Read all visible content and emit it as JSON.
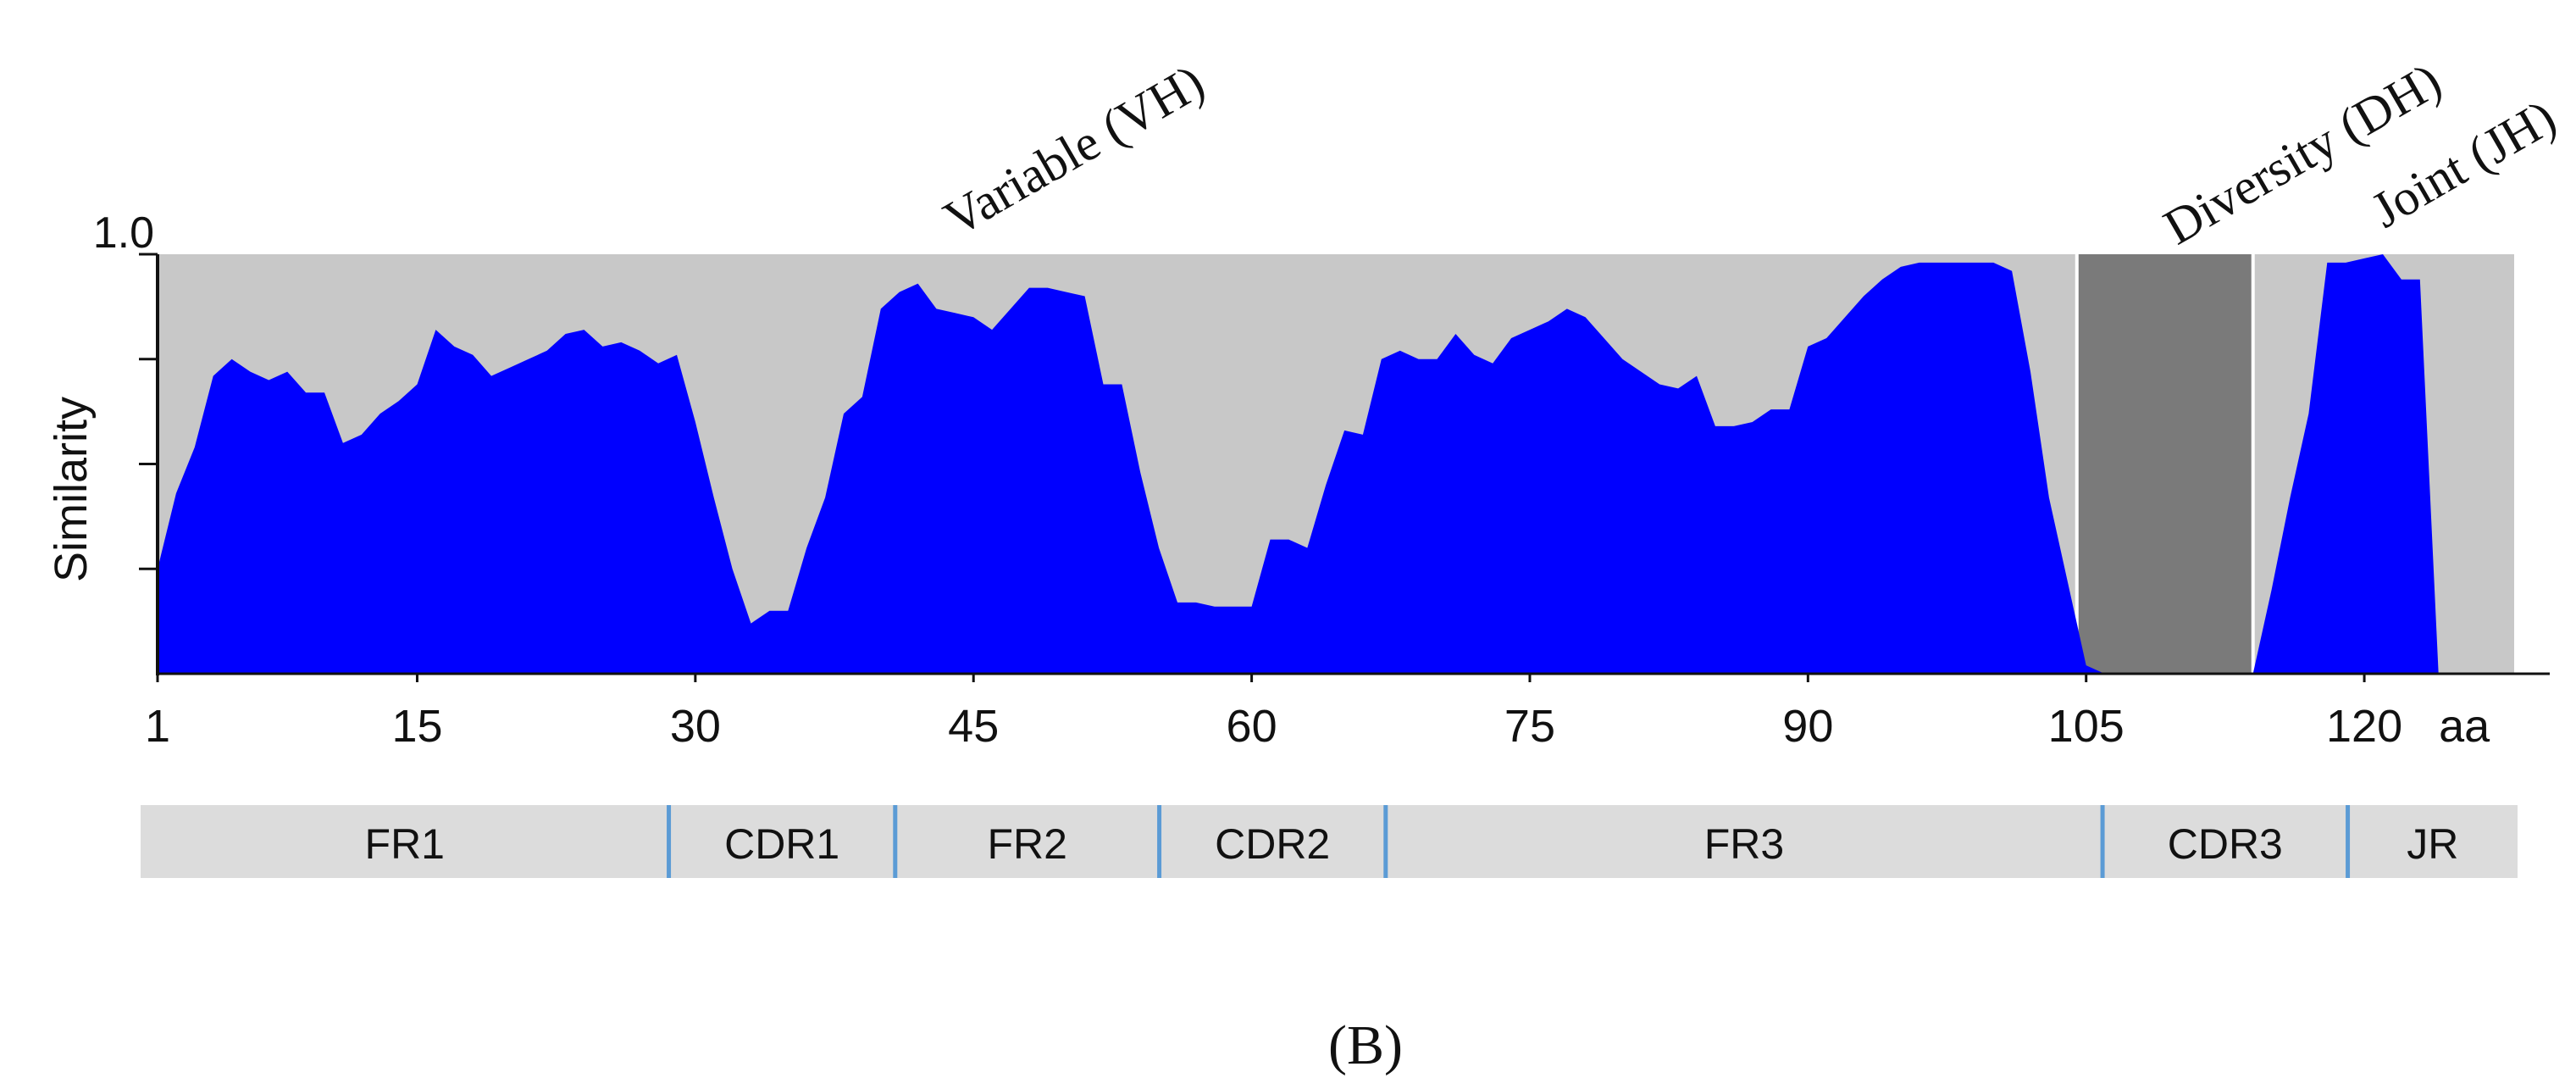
{
  "chart_data": {
    "type": "area",
    "xlabel": "",
    "x_unit": "aa",
    "ylabel": "Similarity",
    "y_max_label": "1.0",
    "xlim": [
      1,
      130
    ],
    "ylim": [
      0,
      1.0
    ],
    "x_ticks": [
      1,
      15,
      30,
      45,
      60,
      75,
      90,
      105,
      120
    ],
    "y_ticks": [
      0.25,
      0.5,
      0.75,
      1.0
    ],
    "grid": false,
    "colors": {
      "area": "#0000ff",
      "background": "#c8c8c8",
      "dh_region": "#7a7a7a",
      "segment_bar": "#dcdcdc",
      "segment_divider": "#5b9bd5"
    },
    "regions": [
      {
        "label": "Variable (VH)",
        "x_start": 1,
        "x_end": 103
      },
      {
        "label": "Diversity (DH)",
        "x_start": 103,
        "x_end": 114
      },
      {
        "label": "Joint (JH)",
        "x_start": 114,
        "x_end": 125
      }
    ],
    "segments": [
      {
        "label": "FR1",
        "start": 1,
        "end": 29
      },
      {
        "label": "CDR1",
        "start": 29,
        "end": 41
      },
      {
        "label": "FR2",
        "start": 41,
        "end": 55
      },
      {
        "label": "CDR2",
        "start": 55,
        "end": 67
      },
      {
        "label": "FR3",
        "start": 67,
        "end": 105
      },
      {
        "label": "CDR3",
        "start": 105,
        "end": 118
      },
      {
        "label": "JR",
        "start": 118,
        "end": 127
      }
    ],
    "series": [
      {
        "values_x": [
          1,
          2,
          3,
          4,
          5,
          6,
          7,
          8,
          9,
          10,
          11,
          12,
          13,
          14,
          15,
          16,
          17,
          18,
          19,
          20,
          21,
          22,
          23,
          24,
          25,
          26,
          27,
          28,
          29,
          30,
          31,
          32,
          33,
          34,
          35,
          36,
          37,
          38,
          39,
          40,
          41,
          42,
          43,
          44,
          45,
          46,
          47,
          48,
          49,
          50,
          51,
          52,
          53,
          54,
          55,
          56,
          57,
          58,
          59,
          60,
          61,
          62,
          63,
          64,
          65,
          66,
          67,
          68,
          69,
          70,
          71,
          72,
          73,
          74,
          75,
          76,
          77,
          78,
          79,
          80,
          81,
          82,
          83,
          84,
          85,
          86,
          87,
          88,
          89,
          90,
          91,
          92,
          93,
          94,
          95,
          96,
          97,
          98,
          99,
          100,
          101,
          102,
          103,
          104,
          105,
          106,
          107,
          108,
          109,
          110,
          111,
          112,
          113,
          114,
          115,
          116,
          117,
          118,
          119,
          120,
          121,
          122,
          123,
          124,
          125,
          126,
          127,
          128,
          129,
          130
        ],
        "values_y": [
          0.25,
          0.43,
          0.54,
          0.71,
          0.75,
          0.72,
          0.7,
          0.72,
          0.67,
          0.67,
          0.55,
          0.57,
          0.62,
          0.65,
          0.69,
          0.82,
          0.78,
          0.76,
          0.71,
          0.73,
          0.75,
          0.77,
          0.81,
          0.82,
          0.78,
          0.79,
          0.77,
          0.74,
          0.76,
          0.6,
          0.42,
          0.25,
          0.12,
          0.15,
          0.15,
          0.3,
          0.42,
          0.62,
          0.66,
          0.87,
          0.91,
          0.93,
          0.87,
          0.86,
          0.85,
          0.82,
          0.87,
          0.92,
          0.92,
          0.91,
          0.9,
          0.69,
          0.69,
          0.48,
          0.3,
          0.17,
          0.17,
          0.16,
          0.16,
          0.16,
          0.32,
          0.32,
          0.3,
          0.45,
          0.58,
          0.57,
          0.75,
          0.77,
          0.75,
          0.75,
          0.81,
          0.76,
          0.74,
          0.8,
          0.82,
          0.84,
          0.87,
          0.85,
          0.8,
          0.75,
          0.72,
          0.69,
          0.68,
          0.71,
          0.59,
          0.59,
          0.6,
          0.63,
          0.63,
          0.78,
          0.8,
          0.85,
          0.9,
          0.94,
          0.97,
          0.98,
          0.98,
          0.98,
          0.98,
          0.98,
          0.96,
          0.72,
          0.42,
          0.22,
          0.02,
          0.0,
          0.0,
          0.0,
          0.0,
          0.0,
          0.0,
          0.0,
          0.0,
          0.0,
          0.2,
          0.42,
          0.62,
          0.98,
          0.98,
          0.99,
          1.0,
          0.94,
          0.94,
          0.0,
          0.0,
          0.0,
          0.0,
          0.0,
          0.0,
          0.0
        ]
      }
    ]
  },
  "panel_label": "(B)"
}
